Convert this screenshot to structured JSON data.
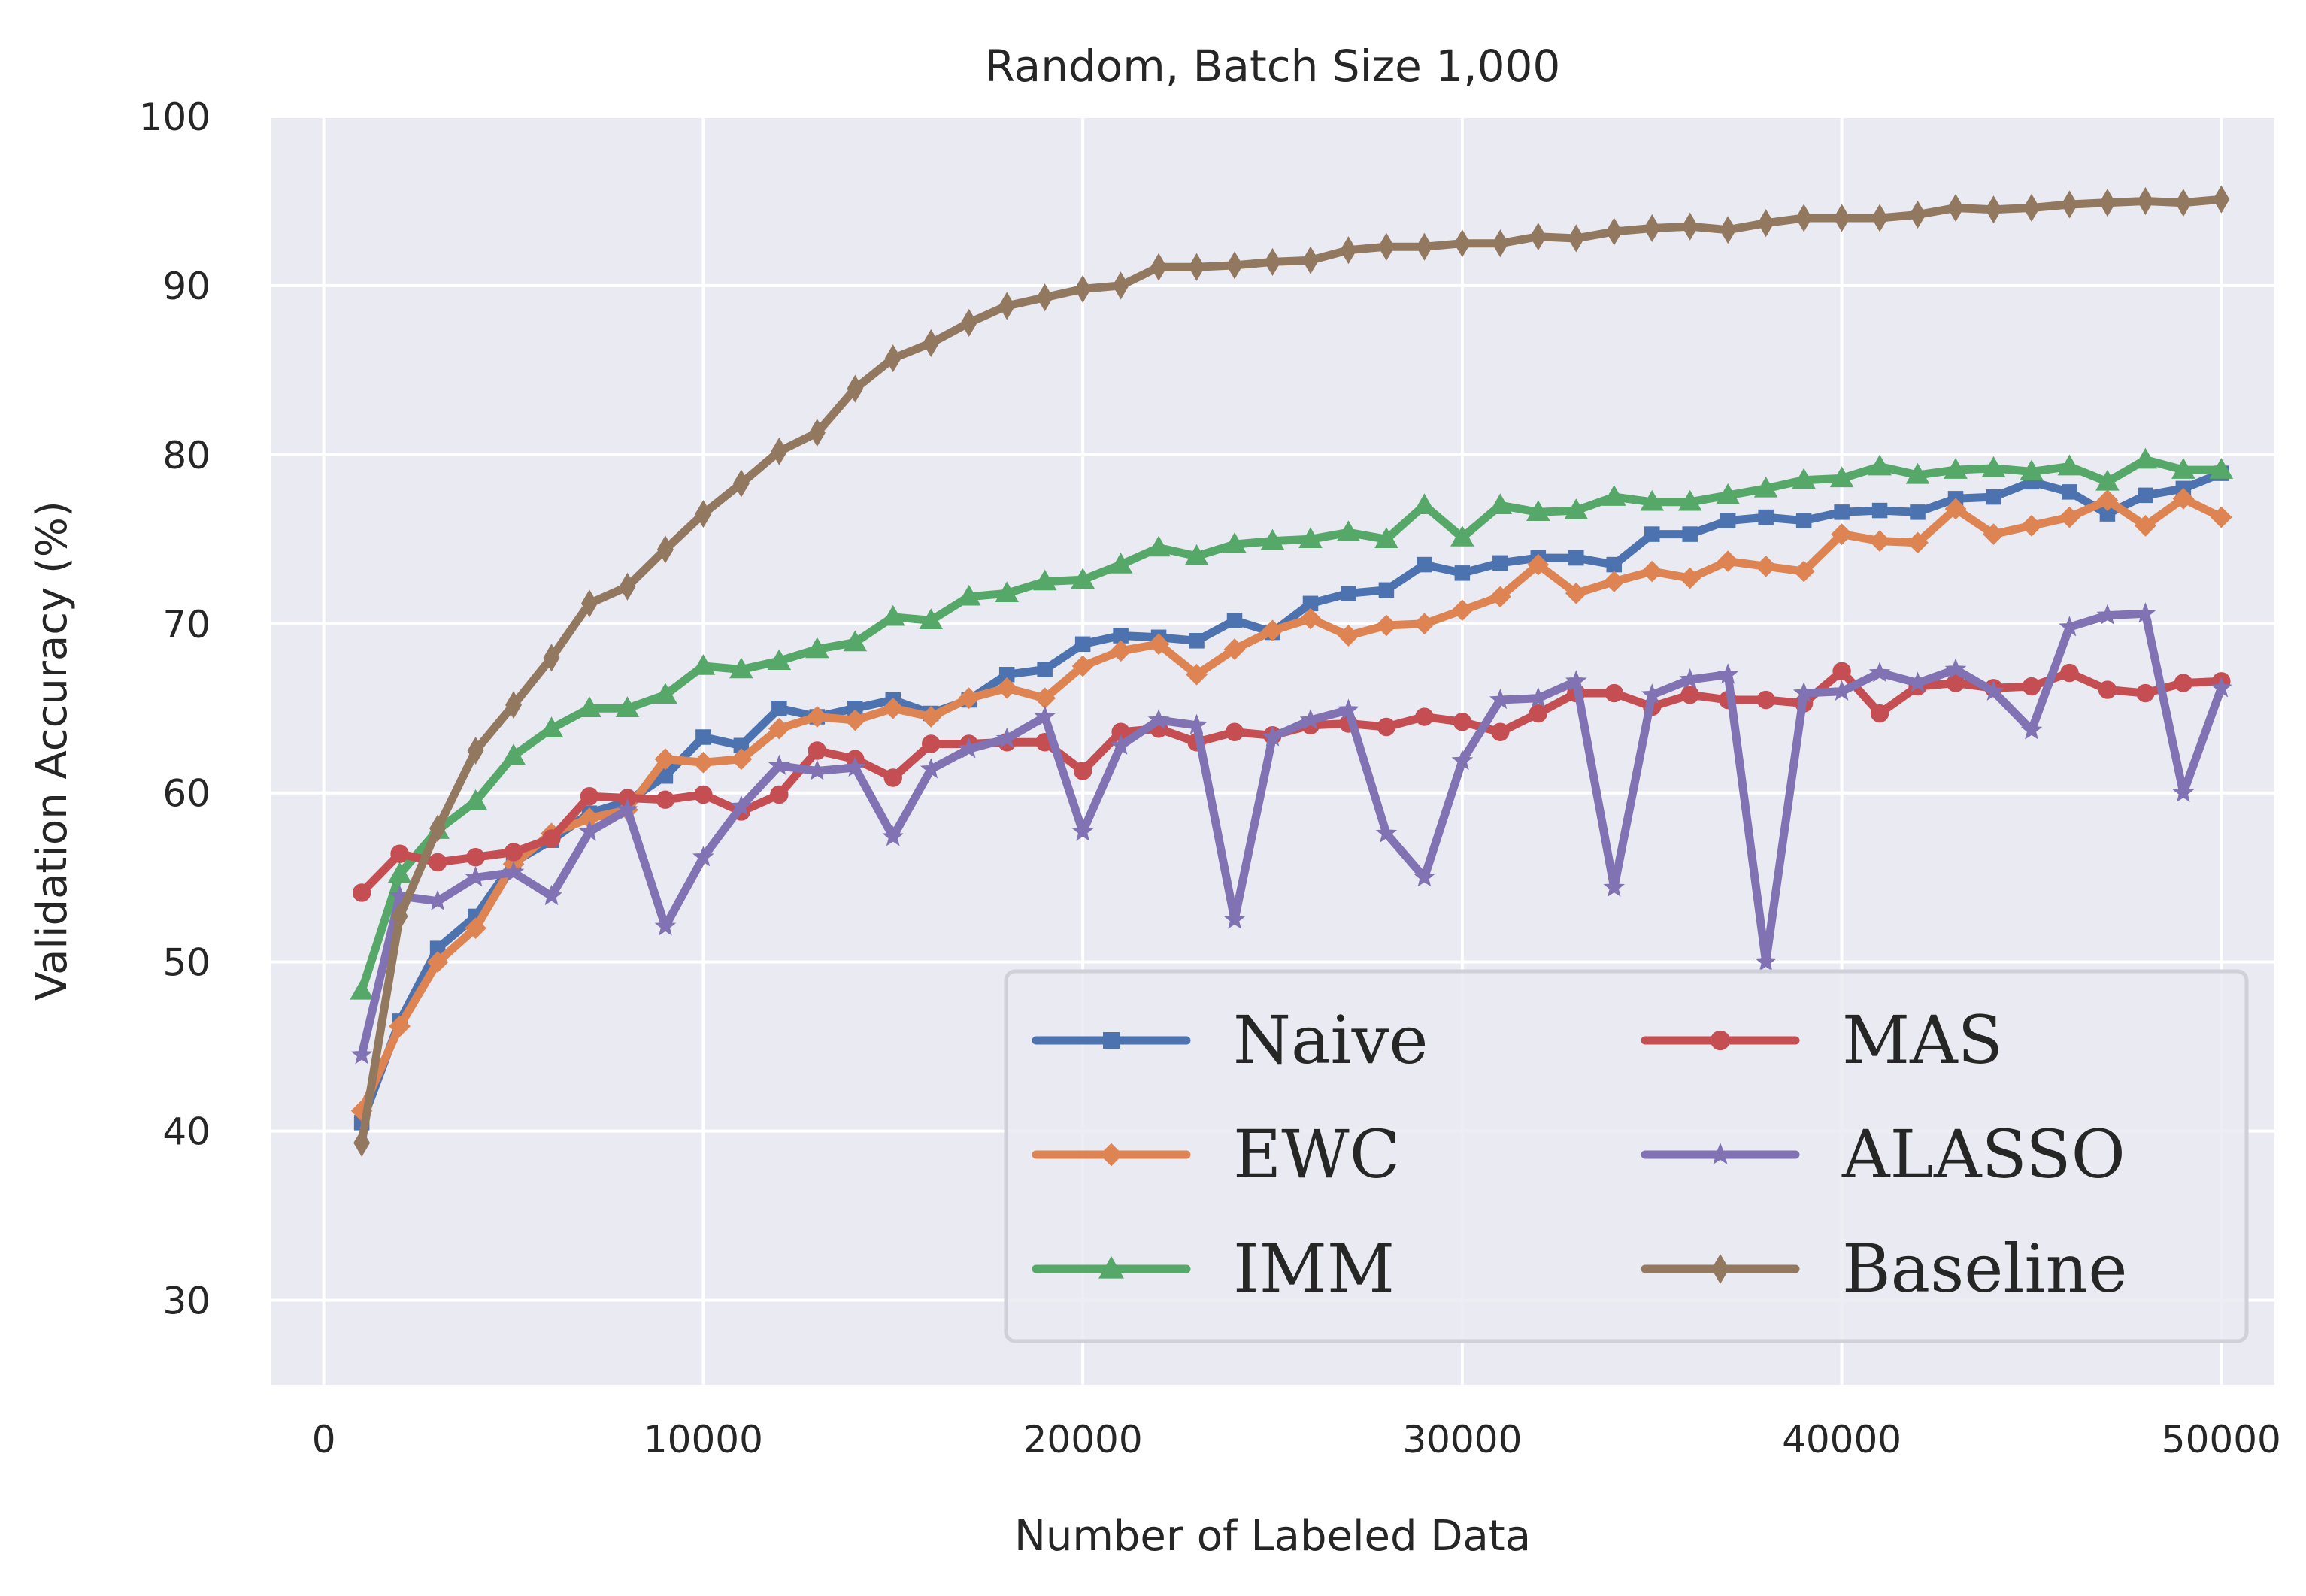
{
  "chart_data": {
    "type": "line",
    "title": "Random, Batch Size 1,000",
    "xlabel": "Number of Labeled Data",
    "ylabel": "Validation Accuracy (%)",
    "xlim": [
      -1400,
      51400
    ],
    "ylim": [
      25,
      100
    ],
    "xticks": [
      0,
      10000,
      20000,
      30000,
      40000,
      50000
    ],
    "xtick_labels": [
      "0",
      "10000",
      "20000",
      "30000",
      "40000",
      "50000"
    ],
    "yticks": [
      30,
      40,
      50,
      60,
      70,
      80,
      90,
      100
    ],
    "ytick_labels": [
      "30",
      "40",
      "50",
      "60",
      "70",
      "80",
      "90",
      "100"
    ],
    "grid": true,
    "legend_position": "lower-right",
    "legend_columns": 2,
    "x": [
      1000,
      2000,
      3000,
      4000,
      5000,
      6000,
      7000,
      8000,
      9000,
      10000,
      11000,
      12000,
      13000,
      14000,
      15000,
      16000,
      17000,
      18000,
      19000,
      20000,
      21000,
      22000,
      23000,
      24000,
      25000,
      26000,
      27000,
      28000,
      29000,
      30000,
      31000,
      32000,
      33000,
      34000,
      35000,
      36000,
      37000,
      38000,
      39000,
      40000,
      41000,
      42000,
      43000,
      44000,
      45000,
      46000,
      47000,
      48000,
      49000,
      50000
    ],
    "series": [
      {
        "name": "Naive",
        "color": "#4c72b0",
        "marker": "square",
        "values": [
          40.5,
          46.5,
          50.8,
          52.7,
          55.9,
          57.2,
          58.8,
          59.5,
          61.0,
          63.3,
          62.8,
          65.0,
          64.5,
          65.0,
          65.5,
          64.7,
          65.5,
          67.0,
          67.3,
          68.8,
          69.3,
          69.2,
          69.0,
          70.2,
          69.5,
          71.2,
          71.8,
          72.0,
          73.5,
          73.0,
          73.6,
          73.9,
          73.9,
          73.5,
          75.3,
          75.3,
          76.1,
          76.3,
          76.1,
          76.6,
          76.7,
          76.6,
          77.4,
          77.5,
          78.4,
          77.8,
          76.5,
          77.6,
          78.0,
          78.9
        ]
      },
      {
        "name": "EWC",
        "color": "#dd8452",
        "marker": "diamond",
        "values": [
          41.2,
          46.2,
          50.0,
          52.0,
          55.8,
          57.6,
          58.5,
          59.0,
          62.0,
          61.8,
          62.0,
          63.8,
          64.5,
          64.3,
          65.0,
          64.5,
          65.6,
          66.2,
          65.6,
          67.5,
          68.4,
          68.8,
          67.0,
          68.5,
          69.6,
          70.3,
          69.3,
          69.9,
          70.0,
          70.8,
          71.6,
          73.5,
          71.8,
          72.5,
          73.1,
          72.7,
          73.7,
          73.4,
          73.1,
          75.3,
          74.9,
          74.8,
          76.8,
          75.3,
          75.8,
          76.3,
          77.3,
          75.8,
          77.4,
          76.3
        ]
      },
      {
        "name": "IMM",
        "color": "#55a868",
        "marker": "triangle",
        "values": [
          48.3,
          55.2,
          57.8,
          59.5,
          62.2,
          63.8,
          65.0,
          65.0,
          65.8,
          67.5,
          67.3,
          67.8,
          68.5,
          68.9,
          70.4,
          70.2,
          71.6,
          71.8,
          72.5,
          72.6,
          73.5,
          74.5,
          74.0,
          74.7,
          74.9,
          75.0,
          75.4,
          75.0,
          77.0,
          75.1,
          77.0,
          76.6,
          76.7,
          77.5,
          77.2,
          77.2,
          77.6,
          78.0,
          78.5,
          78.6,
          79.3,
          78.8,
          79.1,
          79.2,
          79.0,
          79.3,
          78.4,
          79.7,
          79.1,
          79.1
        ]
      },
      {
        "name": "MAS",
        "color": "#c44e52",
        "marker": "circle",
        "values": [
          54.1,
          56.4,
          55.9,
          56.2,
          56.5,
          57.3,
          59.8,
          59.7,
          59.6,
          59.9,
          58.9,
          59.9,
          62.5,
          62.0,
          60.9,
          62.9,
          62.9,
          63.0,
          63.0,
          61.3,
          63.6,
          63.8,
          63.0,
          63.6,
          63.4,
          64.0,
          64.1,
          63.9,
          64.5,
          64.2,
          63.6,
          64.7,
          65.9,
          65.9,
          65.1,
          65.8,
          65.5,
          65.5,
          65.3,
          67.2,
          64.7,
          66.3,
          66.5,
          66.2,
          66.3,
          67.1,
          66.1,
          65.9,
          66.5,
          66.6
        ]
      },
      {
        "name": "ALASSO",
        "color": "#8172b3",
        "marker": "star",
        "values": [
          44.5,
          53.9,
          53.6,
          55.0,
          55.3,
          53.9,
          57.7,
          59.0,
          52.1,
          56.2,
          59.2,
          61.6,
          61.3,
          61.5,
          57.4,
          61.4,
          62.6,
          63.2,
          64.5,
          57.7,
          62.8,
          64.3,
          64.0,
          52.5,
          63.3,
          64.3,
          64.9,
          57.6,
          55.0,
          61.9,
          65.5,
          65.6,
          66.6,
          54.4,
          65.8,
          66.7,
          67.0,
          50.0,
          65.9,
          66.0,
          67.1,
          66.5,
          67.3,
          66.0,
          63.7,
          69.8,
          70.5,
          70.6,
          60.0,
          66.2
        ]
      },
      {
        "name": "Baseline",
        "color": "#937860",
        "marker": "thin-diamond",
        "values": [
          39.3,
          52.7,
          57.9,
          62.5,
          65.2,
          68.0,
          71.2,
          72.2,
          74.4,
          76.5,
          78.3,
          80.2,
          81.3,
          83.9,
          85.7,
          86.6,
          87.8,
          88.8,
          89.3,
          89.8,
          90.0,
          91.1,
          91.1,
          91.2,
          91.4,
          91.5,
          92.1,
          92.3,
          92.3,
          92.5,
          92.5,
          92.9,
          92.8,
          93.2,
          93.4,
          93.5,
          93.3,
          93.7,
          94.0,
          94.0,
          94.0,
          94.2,
          94.6,
          94.5,
          94.6,
          94.8,
          94.9,
          95.0,
          94.9,
          95.1
        ]
      }
    ]
  }
}
